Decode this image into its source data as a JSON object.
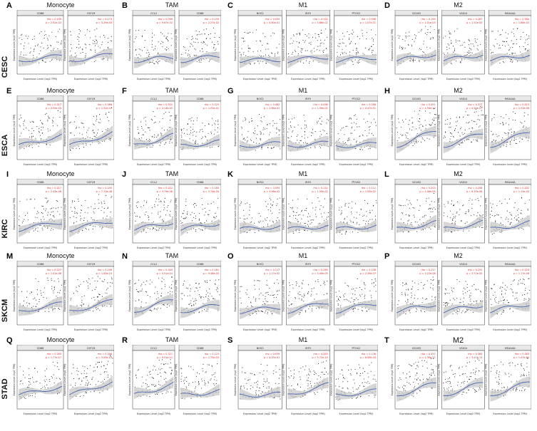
{
  "figure": {
    "panels": [
      {
        "letter": "A",
        "row": 0,
        "col": 0,
        "title": "Monocyte",
        "plots": [
          {
            "gene": "CD86",
            "rho": "rho = 0.135",
            "p": "p = 2.52e-02"
          },
          {
            "gene": "CSF1R",
            "rho": "rho = 0.174",
            "p": "p = 3.29e-03"
          }
        ]
      },
      {
        "letter": "B",
        "row": 0,
        "col": 1,
        "title": "TAM",
        "plots": [
          {
            "gene": "CCL2",
            "rho": "rho = 0.099",
            "p": "p = 9.67e-02"
          },
          {
            "gene": "CD68",
            "rho": "rho = 0.135",
            "p": "p = 2.27e-02"
          }
        ]
      },
      {
        "letter": "C",
        "row": 0,
        "col": 2,
        "title": "M1",
        "plots": [
          {
            "gene": "NOS2",
            "rho": "rho = 0.033",
            "p": "p = 5.80e-01"
          },
          {
            "gene": "IRF5",
            "rho": "rho = 0.112",
            "p": "p = 5.86e-02"
          },
          {
            "gene": "PTGS2",
            "rho": "rho = 0.096",
            "p": "p = 1.07e-01"
          }
        ]
      },
      {
        "letter": "D",
        "row": 0,
        "col": 3,
        "title": "M2",
        "plots": [
          {
            "gene": "CD163",
            "rho": "rho = 0.195",
            "p": "p = 1.01e-03"
          },
          {
            "gene": "VSIG4",
            "rho": "rho = 0.187",
            "p": "p = 1.52e-03"
          },
          {
            "gene": "MS4A4A",
            "rho": "rho = 0.184",
            "p": "p = 1.86e-03"
          }
        ]
      },
      {
        "letter": "E",
        "row": 1,
        "col": 0,
        "title": "Monocyte",
        "plots": [
          {
            "gene": "CD86",
            "rho": "rho = 0.317",
            "p": "p = 2.05e-05"
          },
          {
            "gene": "CSF1R",
            "rho": "rho = 0.386",
            "p": "p = 1.31e-07"
          }
        ]
      },
      {
        "letter": "F",
        "row": 1,
        "col": 1,
        "title": "TAM",
        "plots": [
          {
            "gene": "CCL2",
            "rho": "rho = 0.312",
            "p": "p = 3.14e-05"
          },
          {
            "gene": "CD68",
            "rho": "rho = 0.125",
            "p": "p = 1.01e-01"
          }
        ]
      },
      {
        "letter": "G",
        "row": 1,
        "col": 2,
        "title": "M1",
        "plots": [
          {
            "gene": "NOS2",
            "rho": "rho = 0.082",
            "p": "p = 2.86e-01"
          },
          {
            "gene": "IRF5",
            "rho": "rho = 0.098",
            "p": "p = 1.99e-01"
          },
          {
            "gene": "PTGS2",
            "rho": "rho = 0.058",
            "p": "p = 4.47e-01"
          }
        ]
      },
      {
        "letter": "H",
        "row": 1,
        "col": 3,
        "title": "M2",
        "plots": [
          {
            "gene": "CD163",
            "rho": "rho = 0.451",
            "p": "p = 4.94e-10"
          },
          {
            "gene": "VSIG4",
            "rho": "rho = 0.372",
            "p": "p = 4.54e-07"
          },
          {
            "gene": "MS4A4A",
            "rho": "rho = 0.413",
            "p": "p = 1.53e-08"
          }
        ]
      },
      {
        "letter": "I",
        "row": 2,
        "col": 0,
        "title": "Monocyte",
        "plots": [
          {
            "gene": "CD86",
            "rho": "rho = 0.217",
            "p": "p = 2.43e-06"
          },
          {
            "gene": "CSF1R",
            "rho": "rho = 0.245",
            "p": "p = 7.70e-08"
          }
        ]
      },
      {
        "letter": "J",
        "row": 2,
        "col": 1,
        "title": "TAM",
        "plots": [
          {
            "gene": "CCL2",
            "rho": "rho = 0.212",
            "p": "p = 3.79e-06"
          },
          {
            "gene": "CD68",
            "rho": "rho = 0.185",
            "p": "p = 5.74e-05"
          }
        ]
      },
      {
        "letter": "K",
        "row": 2,
        "col": 2,
        "title": "M1",
        "plots": [
          {
            "gene": "NOS2",
            "rho": "rho = 0.095",
            "p": "p = 3.96e-02"
          },
          {
            "gene": "IRF5",
            "rho": "rho = 0.111",
            "p": "p = 1.59e-02"
          },
          {
            "gene": "PTGS2",
            "rho": "rho = 0.112",
            "p": "p = 1.55e-02"
          }
        ]
      },
      {
        "letter": "L",
        "row": 2,
        "col": 3,
        "title": "M2",
        "plots": [
          {
            "gene": "CD163",
            "rho": "rho = 0.203",
            "p": "p = 1.06e-05"
          },
          {
            "gene": "VSIG4",
            "rho": "rho = 0.208",
            "p": "p = 6.33e-06"
          },
          {
            "gene": "MS4A4A",
            "rho": "rho = 0.202",
            "p": "p = 1.15e-05"
          }
        ]
      },
      {
        "letter": "M",
        "row": 3,
        "col": 0,
        "title": "Monocyte",
        "plots": [
          {
            "gene": "CD86",
            "rho": "rho = 0.227",
            "p": "p = 1.01e-06"
          },
          {
            "gene": "CSF1R",
            "rho": "rho = 0.296",
            "p": "p = 1.45e-10"
          }
        ]
      },
      {
        "letter": "N",
        "row": 3,
        "col": 1,
        "title": "TAM",
        "plots": [
          {
            "gene": "CCL2",
            "rho": "rho = 0.343",
            "p": "p = 5.51e-14"
          },
          {
            "gene": "CD68",
            "rho": "rho = 0.181",
            "p": "p = 9.48e-05"
          }
        ]
      },
      {
        "letter": "O",
        "row": 3,
        "col": 2,
        "title": "M1",
        "plots": [
          {
            "gene": "NOS2",
            "rho": "rho = 0.117",
            "p": "p = 1.17e-02"
          },
          {
            "gene": "IRF5",
            "rho": "rho = 0.269",
            "p": "p = 5.49e-09"
          },
          {
            "gene": "PTGS2",
            "rho": "rho = 0.238",
            "p": "p = 2.39e-07"
          }
        ]
      },
      {
        "letter": "P",
        "row": 3,
        "col": 3,
        "title": "M2",
        "plots": [
          {
            "gene": "CD163",
            "rho": "rho = 0.217",
            "p": "p = 3.22e-06"
          },
          {
            "gene": "VSIG4",
            "rho": "rho = 0.191",
            "p": "p = 3.72e-05"
          },
          {
            "gene": "MS4A4A",
            "rho": "rho = 0.224",
            "p": "p = 1.17e-06"
          }
        ]
      },
      {
        "letter": "Q",
        "row": 4,
        "col": 0,
        "title": "Monocyte",
        "plots": [
          {
            "gene": "CD86",
            "rho": "rho = 0.265",
            "p": "p = 1.77e-07"
          },
          {
            "gene": "CSF1R",
            "rho": "rho = 0.396",
            "p": "p = 3.05e-15"
          }
        ]
      },
      {
        "letter": "R",
        "row": 4,
        "col": 1,
        "title": "TAM",
        "plots": [
          {
            "gene": "CCL2",
            "rho": "rho = 0.327",
            "p": "p = 9.51e-11"
          },
          {
            "gene": "CD68",
            "rho": "rho = 0.123",
            "p": "p = 1.75e-02"
          }
        ]
      },
      {
        "letter": "S",
        "row": 4,
        "col": 2,
        "title": "M1",
        "plots": [
          {
            "gene": "NOS2",
            "rho": "rho = 0.039",
            "p": "p = 4.55e-01"
          },
          {
            "gene": "IRF5",
            "rho": "rho = 0.315",
            "p": "p = 5.72e-10"
          },
          {
            "gene": "PTGS2",
            "rho": "rho = 0.136",
            "p": "p = 8.49e-03"
          }
        ]
      },
      {
        "letter": "T",
        "row": 4,
        "col": 3,
        "title": "M2",
        "plots": [
          {
            "gene": "CD163",
            "rho": "rho = 0.357",
            "p": "p = 1.30e-12"
          },
          {
            "gene": "VSIG4",
            "rho": "rho = 0.365",
            "p": "p = 3.41e-13"
          },
          {
            "gene": "MS4A4A",
            "rho": "rho = 0.383",
            "p": "p = 1.47e-14"
          }
        ]
      }
    ],
    "cancer_labels": [
      "CESC",
      "ESCA",
      "KIRC",
      "SKCM",
      "STAD"
    ],
    "xlabel": "Expression Level (log2 TPM)",
    "ylabel": "Expression Level (log2 TPM)",
    "colors": {
      "curve": "#4a64b0",
      "band": "#c8c8c8",
      "point": "#1a1a1a",
      "stats": "#d62728",
      "frame": "#333333",
      "strip": "#e8e8e8"
    }
  }
}
